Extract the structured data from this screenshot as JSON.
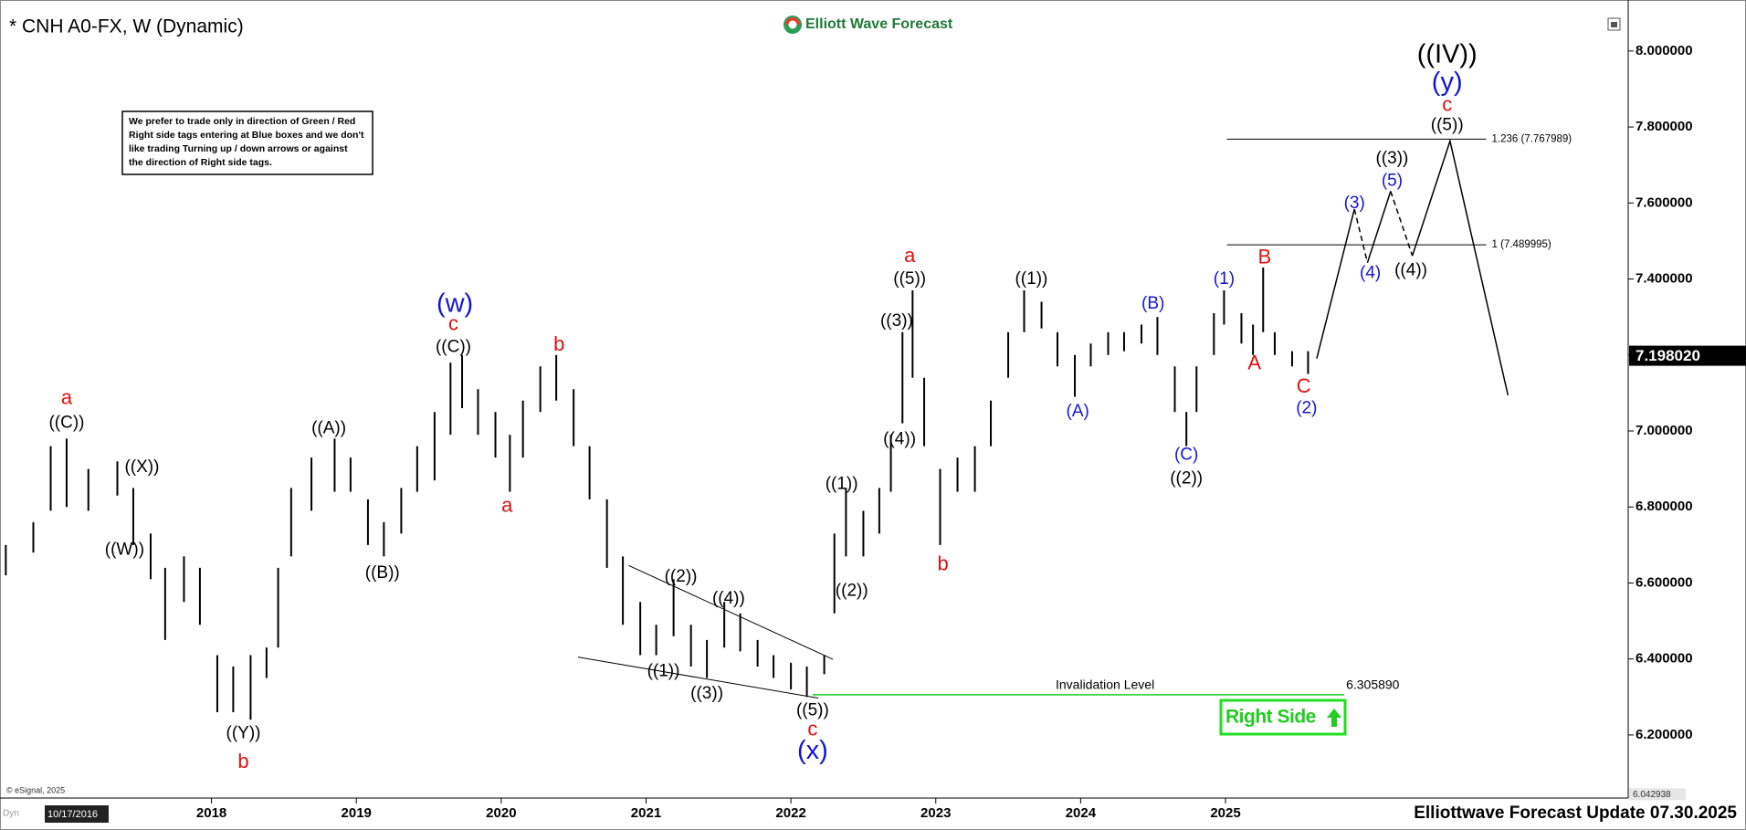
{
  "chart_data": {
    "type": "ohlc",
    "title": "* CNH A0-FX, W (Dynamic)",
    "brand": "Elliott Wave Forecast",
    "footer": "Elliottwave Forecast Update 07.30.2025",
    "copyright": "© eSignal, 2025",
    "dyn": "Dyn",
    "start_date": "10/17/2016",
    "right_side": "Right Side",
    "notice": [
      "We prefer to trade only in direction of Green / Red",
      "Right side tags entering at Blue boxes and we don't",
      "like trading Turning up / down arrows or against",
      "the direction of Right side tags."
    ],
    "color": "#000000",
    "xlim": [
      2016.54,
      2027.78
    ],
    "ylim": [
      6.034,
      8.115
    ],
    "xticks": [
      2018,
      2019,
      2020,
      2021,
      2022,
      2023,
      2024,
      2025
    ],
    "yticks": [
      {
        "value": 6.2,
        "label": "6.200000"
      },
      {
        "value": 6.4,
        "label": "6.400000"
      },
      {
        "value": 6.6,
        "label": "6.600000"
      },
      {
        "value": 6.8,
        "label": "6.800000"
      },
      {
        "value": 7.0,
        "label": "7.000000"
      },
      {
        "value": 7.2,
        "label": "7.200000"
      },
      {
        "value": 7.4,
        "label": "7.400000"
      },
      {
        "value": 7.6,
        "label": "7.600000"
      },
      {
        "value": 7.8,
        "label": "7.800000"
      },
      {
        "value": 8.0,
        "label": "8.000000"
      }
    ],
    "last_price": {
      "value": 7.19802,
      "label": "7.198020"
    },
    "axis_low": 6.042938,
    "x": [
      2016.58,
      2016.77,
      2016.89,
      2017.0,
      2017.15,
      2017.35,
      2017.46,
      2017.58,
      2017.68,
      2017.81,
      2017.92,
      2018.04,
      2018.15,
      2018.27,
      2018.38,
      2018.46,
      2018.55,
      2018.69,
      2018.85,
      2018.96,
      2019.08,
      2019.19,
      2019.31,
      2019.42,
      2019.54,
      2019.65,
      2019.73,
      2019.84,
      2019.96,
      2020.06,
      2020.15,
      2020.27,
      2020.38,
      2020.5,
      2020.61,
      2020.73,
      2020.84,
      2020.96,
      2021.07,
      2021.19,
      2021.31,
      2021.42,
      2021.54,
      2021.65,
      2021.77,
      2021.88,
      2022.0,
      2022.11,
      2022.23,
      2022.3,
      2022.38,
      2022.5,
      2022.61,
      2022.69,
      2022.77,
      2022.84,
      2022.92,
      2023.03,
      2023.15,
      2023.27,
      2023.38,
      2023.5,
      2023.61,
      2023.73,
      2023.84,
      2023.96,
      2024.07,
      2024.19,
      2024.3,
      2024.42,
      2024.53,
      2024.65,
      2024.73,
      2024.8,
      2024.92,
      2024.99,
      2025.11,
      2025.19,
      2025.26,
      2025.34,
      2025.46,
      2025.57
    ],
    "high": [
      6.7,
      6.76,
      6.96,
      6.98,
      6.9,
      6.92,
      6.85,
      6.73,
      6.64,
      6.67,
      6.64,
      6.41,
      6.38,
      6.41,
      6.43,
      6.64,
      6.85,
      6.93,
      6.98,
      6.93,
      6.82,
      6.76,
      6.85,
      6.96,
      7.05,
      7.18,
      7.2,
      7.11,
      7.05,
      6.99,
      7.08,
      7.17,
      7.2,
      7.11,
      6.96,
      6.82,
      6.67,
      6.55,
      6.49,
      6.61,
      6.49,
      6.45,
      6.55,
      6.52,
      6.45,
      6.41,
      6.39,
      6.38,
      6.41,
      6.73,
      6.85,
      6.79,
      6.85,
      6.99,
      7.26,
      7.37,
      7.14,
      6.9,
      6.93,
      6.96,
      7.08,
      7.26,
      7.37,
      7.34,
      7.26,
      7.2,
      7.23,
      7.26,
      7.26,
      7.28,
      7.3,
      7.17,
      7.05,
      7.17,
      7.31,
      7.37,
      7.31,
      7.28,
      7.43,
      7.26,
      7.21,
      7.21
    ],
    "low": [
      6.62,
      6.68,
      6.79,
      6.8,
      6.79,
      6.83,
      6.7,
      6.61,
      6.45,
      6.55,
      6.49,
      6.26,
      6.26,
      6.24,
      6.35,
      6.43,
      6.67,
      6.79,
      6.84,
      6.84,
      6.7,
      6.67,
      6.73,
      6.84,
      6.87,
      6.99,
      7.06,
      6.99,
      6.93,
      6.84,
      6.93,
      7.05,
      7.08,
      6.96,
      6.82,
      6.64,
      6.49,
      6.41,
      6.41,
      6.46,
      6.38,
      6.35,
      6.43,
      6.42,
      6.38,
      6.35,
      6.32,
      6.3,
      6.36,
      6.52,
      6.67,
      6.67,
      6.73,
      6.84,
      7.02,
      7.14,
      6.96,
      6.7,
      6.84,
      6.84,
      6.96,
      7.14,
      7.26,
      7.27,
      7.17,
      7.09,
      7.17,
      7.2,
      7.21,
      7.23,
      7.2,
      7.05,
      6.96,
      7.05,
      7.2,
      7.28,
      7.23,
      7.2,
      7.26,
      7.2,
      7.17,
      7.15
    ],
    "wave_labels": [
      {
        "text": "a",
        "x": 2017.0,
        "y": 7.085,
        "color": "#e01010"
      },
      {
        "text": "((C))",
        "x": 2017.0,
        "y": 7.021,
        "color": "#000000"
      },
      {
        "text": "((X))",
        "x": 2017.52,
        "y": 6.904,
        "color": "#000000"
      },
      {
        "text": "((W))",
        "x": 2017.4,
        "y": 6.687,
        "color": "#000000"
      },
      {
        "text": "((Y))",
        "x": 2018.22,
        "y": 6.203,
        "color": "#000000"
      },
      {
        "text": "b",
        "x": 2018.22,
        "y": 6.127,
        "color": "#e01010"
      },
      {
        "text": "((A))",
        "x": 2018.81,
        "y": 7.006,
        "color": "#000000"
      },
      {
        "text": "((B))",
        "x": 2019.18,
        "y": 6.625,
        "color": "#000000"
      },
      {
        "text": "c",
        "x": 2019.67,
        "y": 7.279,
        "color": "#e01010"
      },
      {
        "text": "((C))",
        "x": 2019.67,
        "y": 7.22,
        "color": "#000000"
      },
      {
        "text": "b",
        "x": 2020.4,
        "y": 7.226,
        "color": "#e01010"
      },
      {
        "text": "a",
        "x": 2020.04,
        "y": 6.801,
        "color": "#e01010"
      },
      {
        "text": "((2))",
        "x": 2021.24,
        "y": 6.616,
        "color": "#000000"
      },
      {
        "text": "((4))",
        "x": 2021.57,
        "y": 6.558,
        "color": "#000000"
      },
      {
        "text": "((1))",
        "x": 2021.12,
        "y": 6.367,
        "color": "#000000"
      },
      {
        "text": "((3))",
        "x": 2021.42,
        "y": 6.308,
        "color": "#000000"
      },
      {
        "text": "((5))",
        "x": 2022.15,
        "y": 6.264,
        "color": "#000000"
      },
      {
        "text": "c",
        "x": 2022.15,
        "y": 6.212,
        "color": "#e01010"
      },
      {
        "text": "((1))",
        "x": 2022.35,
        "y": 6.86,
        "color": "#000000"
      },
      {
        "text": "((2))",
        "x": 2022.42,
        "y": 6.578,
        "color": "#000000"
      },
      {
        "text": "((4))",
        "x": 2022.75,
        "y": 6.977,
        "color": "#000000"
      },
      {
        "text": "((3))",
        "x": 2022.73,
        "y": 7.288,
        "color": "#000000"
      },
      {
        "text": "((5))",
        "x": 2022.82,
        "y": 7.399,
        "color": "#000000"
      },
      {
        "text": "a",
        "x": 2022.82,
        "y": 7.458,
        "color": "#e01010"
      },
      {
        "text": "b",
        "x": 2023.05,
        "y": 6.648,
        "color": "#e01010"
      },
      {
        "text": "((1))",
        "x": 2023.66,
        "y": 7.399,
        "color": "#000000"
      },
      {
        "text": "(A)",
        "x": 2023.98,
        "y": 7.05,
        "color": "#1515d0"
      },
      {
        "text": "(B)",
        "x": 2024.5,
        "y": 7.334,
        "color": "#1515d0"
      },
      {
        "text": "(C)",
        "x": 2024.73,
        "y": 6.936,
        "color": "#1515d0"
      },
      {
        "text": "((2))",
        "x": 2024.73,
        "y": 6.874,
        "color": "#000000"
      },
      {
        "text": "(1)",
        "x": 2024.99,
        "y": 7.399,
        "color": "#1515d0"
      },
      {
        "text": "B",
        "x": 2025.27,
        "y": 7.455,
        "color": "#e01010"
      },
      {
        "text": "A",
        "x": 2025.2,
        "y": 7.176,
        "color": "#e01010"
      },
      {
        "text": "C",
        "x": 2025.54,
        "y": 7.115,
        "color": "#e01010"
      },
      {
        "text": "(2)",
        "x": 2025.56,
        "y": 7.059,
        "color": "#1515d0"
      },
      {
        "text": "(3)",
        "x": 2025.89,
        "y": 7.598,
        "color": "#1515d0"
      },
      {
        "text": "(4)",
        "x": 2026.0,
        "y": 7.414,
        "color": "#1515d0"
      },
      {
        "text": "(5)",
        "x": 2026.15,
        "y": 7.657,
        "color": "#1515d0"
      },
      {
        "text": "((3))",
        "x": 2026.15,
        "y": 7.716,
        "color": "#000000"
      },
      {
        "text": "((4))",
        "x": 2026.28,
        "y": 7.422,
        "color": "#000000"
      },
      {
        "text": "((5))",
        "x": 2026.53,
        "y": 7.804,
        "color": "#000000"
      },
      {
        "text": "c",
        "x": 2026.53,
        "y": 7.856,
        "color": "#e01010"
      }
    ],
    "degree_labels": [
      {
        "text": "(w)",
        "x": 2019.68,
        "y": 7.332,
        "color": "#1515d0"
      },
      {
        "text": "(x)",
        "x": 2022.15,
        "y": 6.156,
        "color": "#1515d0"
      },
      {
        "text": "(y)",
        "x": 2026.53,
        "y": 7.915,
        "color": "#1515d0"
      },
      {
        "text": "((IV))",
        "x": 2026.53,
        "y": 7.988,
        "color": "#000000"
      }
    ],
    "trendlines": [
      {
        "x": [
          2020.88,
          2022.29
        ],
        "y": [
          6.646,
          6.399
        ]
      },
      {
        "x": [
          2020.53,
          2022.19
        ],
        "y": [
          6.405,
          6.297
        ]
      }
    ],
    "projection_solid": {
      "x": [
        2025.63,
        2025.89,
        null,
        2025.98,
        2026.14,
        null,
        2026.29,
        2026.55,
        2026.95
      ],
      "y": [
        7.191,
        7.584,
        null,
        7.443,
        7.631,
        null,
        7.461,
        7.763,
        7.094
      ]
    },
    "projection_dashed": {
      "x": [
        2025.89,
        2025.98,
        null,
        2026.14,
        2026.29
      ],
      "y": [
        7.584,
        7.443,
        null,
        7.631,
        7.461
      ]
    },
    "fib_levels": [
      {
        "value": 7.767989,
        "label": "1.236 (7.767989)",
        "x": [
          2025.01,
          2026.8
        ]
      },
      {
        "value": 7.489995,
        "label": "1 (7.489995)",
        "x": [
          2025.01,
          2026.8
        ]
      }
    ],
    "invalidation": {
      "text": "Invalidation Level",
      "level": {
        "value": 6.30589,
        "label": "6.305890"
      },
      "x": [
        2022.15,
        2025.82
      ],
      "color": "#22cc22"
    }
  }
}
